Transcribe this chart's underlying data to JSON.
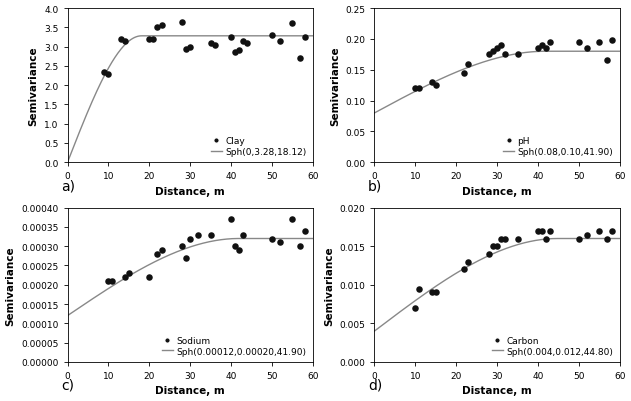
{
  "subplots": [
    {
      "label": "a)",
      "title_dot": "Clay",
      "title_line": "Sph(0,3.28,18.12)",
      "nugget": 0,
      "sill": 3.28,
      "range": 18.12,
      "xlim": [
        0,
        60
      ],
      "ylim": [
        0,
        4.0
      ],
      "yticks": [
        0.0,
        0.5,
        1.0,
        1.5,
        2.0,
        2.5,
        3.0,
        3.5,
        4.0
      ],
      "ylabel": "Semivariance",
      "xlabel": "Distance, m",
      "points_x": [
        9,
        10,
        13,
        14,
        20,
        21,
        22,
        23,
        28,
        29,
        30,
        35,
        36,
        40,
        41,
        42,
        43,
        44,
        50,
        52,
        55,
        57,
        58
      ],
      "points_y": [
        2.35,
        2.3,
        3.2,
        3.15,
        3.2,
        3.2,
        3.5,
        3.55,
        3.65,
        2.95,
        3.0,
        3.1,
        3.05,
        3.25,
        2.85,
        2.9,
        3.15,
        3.1,
        3.3,
        3.15,
        3.6,
        2.7,
        3.25
      ]
    },
    {
      "label": "b)",
      "title_dot": "pH",
      "title_line": "Sph(0.08,0.10,41.90)",
      "nugget": 0.08,
      "sill": 0.1,
      "range": 41.9,
      "xlim": [
        0,
        60
      ],
      "ylim": [
        0.0,
        0.25
      ],
      "yticks": [
        0.0,
        0.05,
        0.1,
        0.15,
        0.2,
        0.25
      ],
      "ylabel": "Semivariance",
      "xlabel": "Distance, m",
      "points_x": [
        10,
        11,
        14,
        15,
        22,
        23,
        28,
        29,
        30,
        31,
        32,
        35,
        40,
        41,
        42,
        43,
        50,
        52,
        55,
        57,
        58
      ],
      "points_y": [
        0.12,
        0.12,
        0.13,
        0.125,
        0.145,
        0.16,
        0.175,
        0.18,
        0.185,
        0.19,
        0.175,
        0.175,
        0.185,
        0.19,
        0.185,
        0.195,
        0.195,
        0.185,
        0.195,
        0.165,
        0.198
      ]
    },
    {
      "label": "c)",
      "title_dot": "Sodium",
      "title_line": "Sph(0.00012,0.00020,41.90)",
      "nugget": 0.00012,
      "sill": 0.0002,
      "range": 41.9,
      "xlim": [
        0,
        60
      ],
      "ylim": [
        0.0,
        0.0004
      ],
      "yticks": [
        0.0,
        5e-05,
        0.0001,
        0.00015,
        0.0002,
        0.00025,
        0.0003,
        0.00035,
        0.0004
      ],
      "ylabel": "Semivariance",
      "xlabel": "Distance, m",
      "points_x": [
        10,
        11,
        14,
        15,
        20,
        22,
        23,
        28,
        29,
        30,
        32,
        35,
        40,
        41,
        42,
        43,
        50,
        52,
        55,
        57,
        58
      ],
      "points_y": [
        0.00021,
        0.00021,
        0.00022,
        0.00023,
        0.00022,
        0.00028,
        0.00029,
        0.0003,
        0.00027,
        0.00032,
        0.00033,
        0.00033,
        0.00037,
        0.0003,
        0.00029,
        0.00033,
        0.00032,
        0.00031,
        0.00037,
        0.0003,
        0.00034
      ]
    },
    {
      "label": "d)",
      "title_dot": "Carbon",
      "title_line": "Sph(0.004,0.012,44.80)",
      "nugget": 0.004,
      "sill": 0.012,
      "range": 44.8,
      "xlim": [
        0,
        60
      ],
      "ylim": [
        0.0,
        0.02
      ],
      "yticks": [
        0.0,
        0.005,
        0.01,
        0.015,
        0.02
      ],
      "ylabel": "Semivariance",
      "xlabel": "Distance, m",
      "points_x": [
        10,
        11,
        14,
        15,
        22,
        23,
        28,
        29,
        30,
        31,
        32,
        35,
        40,
        41,
        42,
        43,
        50,
        52,
        55,
        57,
        58
      ],
      "points_y": [
        0.007,
        0.0095,
        0.009,
        0.009,
        0.012,
        0.013,
        0.014,
        0.015,
        0.015,
        0.016,
        0.016,
        0.016,
        0.017,
        0.017,
        0.016,
        0.017,
        0.016,
        0.0165,
        0.017,
        0.016,
        0.017
      ]
    }
  ],
  "line_color": "#888888",
  "dot_color": "#111111",
  "dot_size": 22,
  "font_size": 7.5,
  "tick_font_size": 6.5,
  "label_font_size": 10
}
